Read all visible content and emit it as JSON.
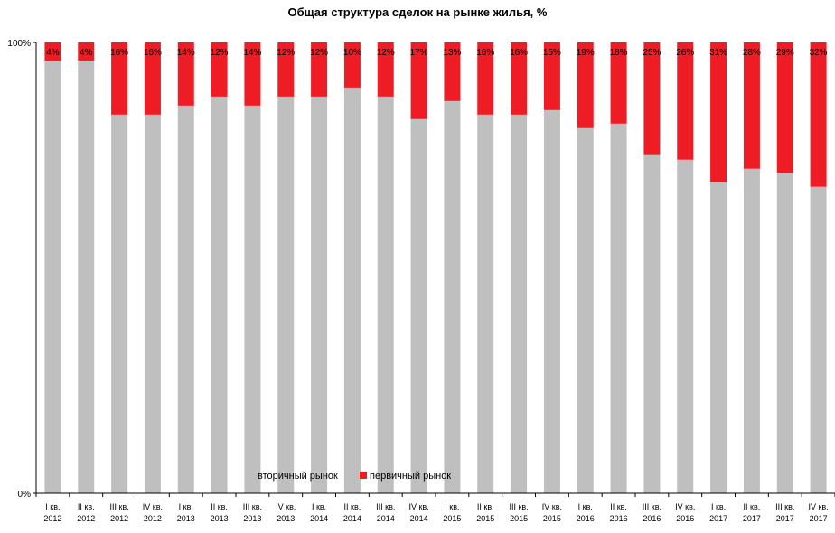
{
  "chart_data": {
    "type": "bar",
    "stacked": true,
    "title": "Общая структура сделок на рынке жилья, %",
    "xlabel": "",
    "ylabel": "",
    "ylim": [
      0,
      100
    ],
    "y_ticks": [
      "0%",
      "100%"
    ],
    "grid": false,
    "legend_position": "bottom-center",
    "categories": [
      [
        "I кв.",
        "2012"
      ],
      [
        "II кв.",
        "2012"
      ],
      [
        "III кв.",
        "2012"
      ],
      [
        "IV кв.",
        "2012"
      ],
      [
        "I кв.",
        "2013"
      ],
      [
        "II кв.",
        "2013"
      ],
      [
        "III кв.",
        "2013"
      ],
      [
        "IV кв.",
        "2013"
      ],
      [
        "I кв.",
        "2014"
      ],
      [
        "II кв.",
        "2014"
      ],
      [
        "III кв.",
        "2014"
      ],
      [
        "IV кв.",
        "2014"
      ],
      [
        "I кв.",
        "2015"
      ],
      [
        "II кв.",
        "2015"
      ],
      [
        "III кв.",
        "2015"
      ],
      [
        "IV кв.",
        "2015"
      ],
      [
        "I кв.",
        "2016"
      ],
      [
        "II кв.",
        "2016"
      ],
      [
        "III кв.",
        "2016"
      ],
      [
        "IV кв.",
        "2016"
      ],
      [
        "I кв.",
        "2017"
      ],
      [
        "II кв.",
        "2017"
      ],
      [
        "III кв.",
        "2017"
      ],
      [
        "IV кв.",
        "2017"
      ]
    ],
    "series": [
      {
        "name": "вторичный рынок",
        "color": "#bfbfbf",
        "values": [
          96,
          96,
          84,
          84,
          86,
          88,
          86,
          88,
          88,
          90,
          88,
          83,
          87,
          84,
          84,
          85,
          81,
          82,
          75,
          74,
          69,
          72,
          71,
          68
        ]
      },
      {
        "name": "первичный рынок",
        "color": "#ee1c25",
        "values": [
          4,
          4,
          16,
          16,
          14,
          12,
          14,
          12,
          12,
          10,
          12,
          17,
          13,
          16,
          16,
          15,
          19,
          18,
          25,
          26,
          31,
          28,
          29,
          32
        ],
        "labels": [
          "4%",
          "4%",
          "16%",
          "16%",
          "14%",
          "12%",
          "14%",
          "12%",
          "12%",
          "10%",
          "12%",
          "17%",
          "13%",
          "16%",
          "16%",
          "15%",
          "19%",
          "18%",
          "25%",
          "26%",
          "31%",
          "28%",
          "29%",
          "32%"
        ]
      }
    ]
  }
}
